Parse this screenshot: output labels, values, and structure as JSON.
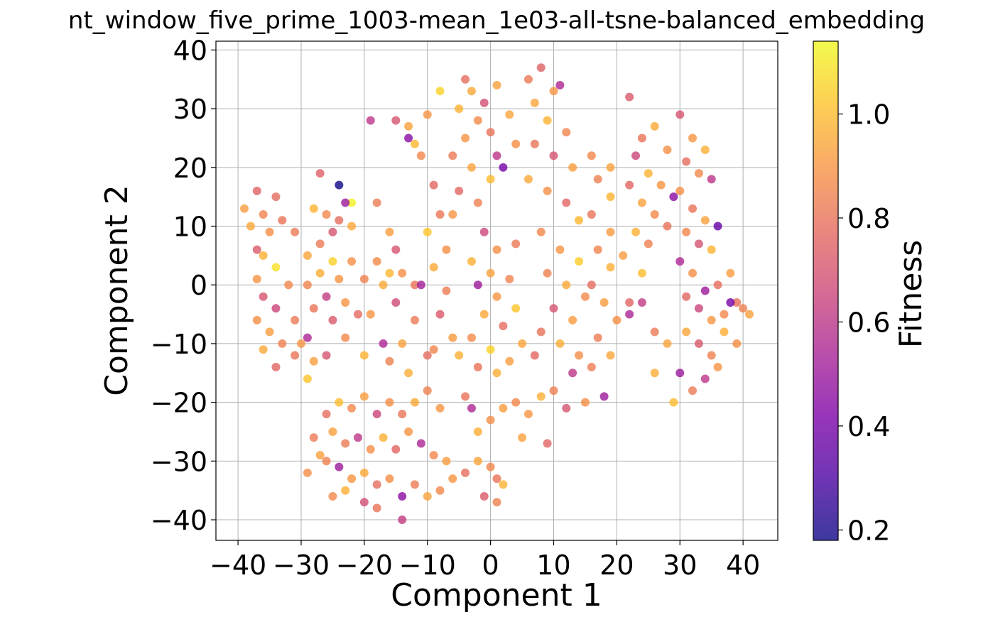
{
  "chart_data": {
    "type": "scatter",
    "title": "nt_window_five_prime_1003-mean_1e03-all-tsne-balanced_embedding",
    "xlabel": "Component 1",
    "ylabel": "Component 2",
    "xlim": [
      -43.5,
      45.5
    ],
    "ylim": [
      -43.5,
      41.5
    ],
    "xticks": [
      -40,
      -30,
      -20,
      -10,
      0,
      10,
      20,
      30,
      40
    ],
    "yticks": [
      -40,
      -30,
      -20,
      -10,
      0,
      10,
      20,
      30,
      40
    ],
    "xtick_labels": [
      "−40",
      "−30",
      "−20",
      "−10",
      "0",
      "10",
      "20",
      "30",
      "40"
    ],
    "ytick_labels": [
      "−40",
      "−30",
      "−20",
      "−10",
      "0",
      "10",
      "20",
      "30",
      "40"
    ],
    "grid": true,
    "colormap": "plasma",
    "colorbar": {
      "label": "Fitness",
      "range": [
        0.18,
        1.14
      ],
      "ticks": [
        0.2,
        0.4,
        0.6,
        0.8,
        1.0
      ],
      "tick_labels": [
        "0.2",
        "0.4",
        "0.6",
        "0.8",
        "1.0"
      ]
    },
    "point_alpha": 0.8,
    "points": [
      [
        -37,
        16,
        0.75
      ],
      [
        -34,
        15,
        0.78
      ],
      [
        -39,
        13,
        0.92
      ],
      [
        -36,
        12,
        0.85
      ],
      [
        -33,
        11,
        0.8
      ],
      [
        -38,
        10,
        0.95
      ],
      [
        -35,
        9,
        0.88
      ],
      [
        -31,
        9,
        0.82
      ],
      [
        -37,
        6,
        0.72
      ],
      [
        -36,
        5,
        0.97
      ],
      [
        -34,
        3,
        1.08
      ],
      [
        -37,
        1,
        0.9
      ],
      [
        -32,
        0,
        0.86
      ],
      [
        -36,
        -2,
        0.7
      ],
      [
        -34,
        -4,
        0.65
      ],
      [
        -37,
        -6,
        0.88
      ],
      [
        -35,
        -8,
        0.92
      ],
      [
        -33,
        -10,
        0.84
      ],
      [
        -36,
        -11,
        0.95
      ],
      [
        -31,
        -12,
        0.8
      ],
      [
        -34,
        -14,
        0.76
      ],
      [
        -30,
        -10,
        0.9
      ],
      [
        -29,
        -16,
        1.02
      ],
      [
        -29,
        -9,
        0.55
      ],
      [
        -31,
        -6,
        0.82
      ],
      [
        -28,
        13,
        0.98
      ],
      [
        -26,
        12,
        0.86
      ],
      [
        -24,
        11,
        0.78
      ],
      [
        -22,
        10,
        0.95
      ],
      [
        -27,
        19,
        0.74
      ],
      [
        -24,
        17,
        0.18
      ],
      [
        -22,
        14,
        1.12
      ],
      [
        -25,
        9,
        0.7
      ],
      [
        -27,
        7,
        0.82
      ],
      [
        -29,
        5,
        0.94
      ],
      [
        -25,
        4,
        1.05
      ],
      [
        -22,
        4,
        0.88
      ],
      [
        -27,
        2,
        0.96
      ],
      [
        -24,
        1,
        0.9
      ],
      [
        -29,
        0,
        0.85
      ],
      [
        -26,
        -2,
        0.62
      ],
      [
        -28,
        -4,
        0.8
      ],
      [
        -25,
        -6,
        0.72
      ],
      [
        -23,
        -3,
        0.9
      ],
      [
        -21,
        -5,
        0.77
      ],
      [
        -26,
        -12,
        0.7
      ],
      [
        -23,
        -9,
        0.86
      ],
      [
        -20,
        -12,
        0.98
      ],
      [
        -28,
        -13,
        0.92
      ],
      [
        -23,
        14,
        0.5
      ],
      [
        -18,
        14,
        0.83
      ],
      [
        -16,
        9,
        0.92
      ],
      [
        -15,
        6,
        0.7
      ],
      [
        -18,
        4,
        0.87
      ],
      [
        -16,
        2,
        0.99
      ],
      [
        -20,
        1,
        0.84
      ],
      [
        -17,
        0,
        0.95
      ],
      [
        -14,
        2,
        0.88
      ],
      [
        -12,
        0,
        0.8
      ],
      [
        -15,
        -3,
        0.67
      ],
      [
        -19,
        -5,
        0.9
      ],
      [
        -12,
        -6,
        0.82
      ],
      [
        -17,
        -10,
        0.55
      ],
      [
        -14,
        -10,
        0.93
      ],
      [
        -10,
        -12,
        0.78
      ],
      [
        -13,
        -15,
        0.96
      ],
      [
        -16,
        -13,
        0.84
      ],
      [
        -19,
        28,
        0.6
      ],
      [
        -15,
        28,
        0.7
      ],
      [
        -13,
        27,
        0.93
      ],
      [
        -12,
        24,
        0.99
      ],
      [
        -10,
        29,
        0.9
      ],
      [
        -8,
        33,
        1.05
      ],
      [
        -13,
        25,
        0.45
      ],
      [
        -11,
        22,
        0.86
      ],
      [
        -9,
        17,
        0.76
      ],
      [
        -8,
        12,
        0.81
      ],
      [
        -10,
        9,
        1.02
      ],
      [
        -7,
        6,
        0.88
      ],
      [
        -9,
        3,
        0.95
      ],
      [
        -11,
        0,
        0.52
      ],
      [
        -7,
        -1,
        0.83
      ],
      [
        -8,
        -5,
        0.72
      ],
      [
        -6,
        -9,
        0.91
      ],
      [
        -9,
        -11,
        0.85
      ],
      [
        -5,
        -12,
        0.97
      ],
      [
        -4,
        35,
        0.78
      ],
      [
        -3,
        33,
        0.95
      ],
      [
        -1,
        31,
        0.68
      ],
      [
        1,
        34,
        0.93
      ],
      [
        -5,
        30,
        0.98
      ],
      [
        -2,
        28,
        0.87
      ],
      [
        0,
        26,
        0.8
      ],
      [
        -4,
        25,
        0.9
      ],
      [
        -6,
        22,
        0.82
      ],
      [
        -3,
        20,
        0.94
      ],
      [
        0,
        18,
        1.0
      ],
      [
        -5,
        16,
        0.76
      ],
      [
        -2,
        14,
        0.84
      ],
      [
        -6,
        12,
        0.9
      ],
      [
        1,
        22,
        0.6
      ],
      [
        2,
        20,
        0.4
      ],
      [
        4,
        24,
        0.88
      ],
      [
        3,
        29,
        0.94
      ],
      [
        -1,
        9,
        0.66
      ],
      [
        1,
        6,
        0.88
      ],
      [
        4,
        7,
        0.82
      ],
      [
        -3,
        4,
        0.97
      ],
      [
        0,
        2,
        0.93
      ],
      [
        3,
        1,
        0.85
      ],
      [
        -2,
        0,
        0.5
      ],
      [
        1,
        -2,
        0.9
      ],
      [
        4,
        -4,
        1.02
      ],
      [
        -1,
        -5,
        0.95
      ],
      [
        2,
        -7,
        0.78
      ],
      [
        -3,
        -9,
        0.87
      ],
      [
        0,
        -11,
        1.05
      ],
      [
        3,
        -13,
        0.92
      ],
      [
        -2,
        -14,
        0.8
      ],
      [
        1,
        -15,
        0.96
      ],
      [
        6,
        35,
        0.82
      ],
      [
        8,
        37,
        0.75
      ],
      [
        10,
        33,
        0.9
      ],
      [
        7,
        31,
        0.94
      ],
      [
        11,
        34,
        0.55
      ],
      [
        9,
        28,
        0.98
      ],
      [
        12,
        26,
        0.85
      ],
      [
        7,
        24,
        0.8
      ],
      [
        10,
        22,
        0.7
      ],
      [
        13,
        20,
        0.92
      ],
      [
        6,
        18,
        0.95
      ],
      [
        9,
        16,
        0.88
      ],
      [
        12,
        14,
        0.76
      ],
      [
        14,
        11,
        0.99
      ],
      [
        8,
        9,
        0.86
      ],
      [
        11,
        6,
        0.9
      ],
      [
        14,
        4,
        1.04
      ],
      [
        9,
        2,
        0.84
      ],
      [
        12,
        0,
        0.95
      ],
      [
        15,
        -2,
        0.87
      ],
      [
        10,
        -4,
        0.7
      ],
      [
        13,
        -6,
        0.92
      ],
      [
        8,
        -8,
        0.8
      ],
      [
        11,
        -10,
        0.96
      ],
      [
        14,
        -12,
        0.88
      ],
      [
        5,
        -10,
        0.94
      ],
      [
        7,
        -12,
        0.76
      ],
      [
        16,
        -14,
        0.83
      ],
      [
        13,
        -15,
        0.6
      ],
      [
        17,
        18,
        0.84
      ],
      [
        19,
        20,
        0.93
      ],
      [
        16,
        22,
        0.86
      ],
      [
        19,
        15,
        0.98
      ],
      [
        16,
        12,
        0.8
      ],
      [
        19,
        9,
        0.91
      ],
      [
        17,
        6,
        0.85
      ],
      [
        19,
        3,
        0.96
      ],
      [
        16,
        0,
        0.78
      ],
      [
        18,
        -3,
        0.92
      ],
      [
        20,
        -6,
        0.88
      ],
      [
        17,
        -9,
        0.83
      ],
      [
        19,
        -12,
        0.94
      ],
      [
        22,
        32,
        0.72
      ],
      [
        24,
        25,
        0.8
      ],
      [
        26,
        27,
        0.95
      ],
      [
        28,
        23,
        0.88
      ],
      [
        23,
        22,
        0.65
      ],
      [
        25,
        19,
        0.98
      ],
      [
        27,
        17,
        0.9
      ],
      [
        29,
        15,
        0.45
      ],
      [
        22,
        17,
        0.76
      ],
      [
        24,
        14,
        0.93
      ],
      [
        26,
        12,
        0.86
      ],
      [
        28,
        10,
        0.8
      ],
      [
        23,
        9,
        0.97
      ],
      [
        25,
        7,
        0.84
      ],
      [
        21,
        5,
        0.91
      ],
      [
        24,
        2,
        1.0
      ],
      [
        22,
        -3,
        0.76
      ],
      [
        22,
        -5,
        0.55
      ],
      [
        24,
        -3,
        0.62
      ],
      [
        26,
        -8,
        0.82
      ],
      [
        28,
        -10,
        0.94
      ],
      [
        26,
        -15,
        0.96
      ],
      [
        30,
        29,
        0.7
      ],
      [
        32,
        25,
        0.9
      ],
      [
        34,
        23,
        0.97
      ],
      [
        31,
        21,
        0.78
      ],
      [
        33,
        19,
        0.86
      ],
      [
        35,
        18,
        0.6
      ],
      [
        30,
        16,
        0.88
      ],
      [
        32,
        13,
        0.8
      ],
      [
        34,
        11,
        0.93
      ],
      [
        36,
        10,
        0.35
      ],
      [
        31,
        9,
        0.85
      ],
      [
        33,
        7,
        0.7
      ],
      [
        35,
        6,
        0.98
      ],
      [
        30,
        4,
        0.55
      ],
      [
        32,
        2,
        0.88
      ],
      [
        34,
        -1,
        0.5
      ],
      [
        36,
        0,
        0.79
      ],
      [
        38,
        2,
        0.92
      ],
      [
        31,
        -2,
        0.76
      ],
      [
        33,
        -4,
        0.65
      ],
      [
        35,
        -6,
        0.9
      ],
      [
        37,
        -5,
        0.86
      ],
      [
        39,
        -3,
        0.8
      ],
      [
        31,
        -8,
        0.94
      ],
      [
        33,
        -10,
        0.72
      ],
      [
        35,
        -12,
        0.84
      ],
      [
        37,
        -8,
        0.96
      ],
      [
        39,
        -10,
        0.88
      ],
      [
        30,
        -15,
        0.5
      ],
      [
        32,
        -18,
        0.82
      ],
      [
        34,
        -16,
        0.6
      ],
      [
        36,
        -14,
        0.9
      ],
      [
        29,
        -20,
        1.0
      ],
      [
        38,
        -3,
        0.4
      ],
      [
        40,
        -4,
        0.84
      ],
      [
        41,
        -5,
        0.93
      ],
      [
        -26,
        -22,
        0.78
      ],
      [
        -24,
        -20,
        1.0
      ],
      [
        -22,
        -21,
        0.86
      ],
      [
        -20,
        -19,
        0.92
      ],
      [
        -18,
        -22,
        0.65
      ],
      [
        -16,
        -20,
        0.88
      ],
      [
        -14,
        -22,
        0.8
      ],
      [
        -12,
        -20,
        0.95
      ],
      [
        -10,
        -18,
        0.84
      ],
      [
        -8,
        -21,
        0.9
      ],
      [
        -25,
        -25,
        0.93
      ],
      [
        -23,
        -27,
        0.82
      ],
      [
        -21,
        -26,
        0.6
      ],
      [
        -19,
        -28,
        0.88
      ],
      [
        -17,
        -26,
        0.97
      ],
      [
        -15,
        -28,
        0.76
      ],
      [
        -13,
        -25,
        0.9
      ],
      [
        -11,
        -27,
        0.55
      ],
      [
        -9,
        -29,
        0.86
      ],
      [
        -7,
        -30,
        0.92
      ],
      [
        -26,
        -30,
        0.84
      ],
      [
        -24,
        -31,
        0.5
      ],
      [
        -22,
        -33,
        0.9
      ],
      [
        -20,
        -32,
        0.95
      ],
      [
        -18,
        -34,
        0.78
      ],
      [
        -16,
        -33,
        0.88
      ],
      [
        -14,
        -36,
        0.45
      ],
      [
        -12,
        -34,
        0.82
      ],
      [
        -10,
        -36,
        0.93
      ],
      [
        -8,
        -35,
        0.86
      ],
      [
        -20,
        -37,
        0.68
      ],
      [
        -18,
        -38,
        0.8
      ],
      [
        -14,
        -40,
        0.62
      ],
      [
        -6,
        -33,
        0.9
      ],
      [
        -4,
        -32,
        0.78
      ],
      [
        -2,
        -30,
        0.94
      ],
      [
        0,
        -31,
        0.86
      ],
      [
        1,
        -33,
        0.8
      ],
      [
        2,
        -34,
        0.98
      ],
      [
        -1,
        -36,
        0.72
      ],
      [
        1,
        -37,
        0.84
      ],
      [
        -2,
        -25,
        0.96
      ],
      [
        0,
        -23,
        0.88
      ],
      [
        -3,
        -21,
        0.55
      ],
      [
        -4,
        -19,
        0.8
      ],
      [
        2,
        -21,
        0.92
      ],
      [
        4,
        -20,
        0.86
      ],
      [
        6,
        -22,
        0.9
      ],
      [
        8,
        -19,
        0.97
      ],
      [
        10,
        -18,
        0.84
      ],
      [
        12,
        -21,
        0.7
      ],
      [
        15,
        -20,
        0.88
      ],
      [
        18,
        -19,
        0.5
      ],
      [
        5,
        -26,
        0.93
      ],
      [
        9,
        -27,
        0.76
      ],
      [
        -28,
        -26,
        0.82
      ],
      [
        -27,
        -29,
        0.93
      ],
      [
        -29,
        -32,
        0.88
      ],
      [
        -25,
        -36,
        0.86
      ],
      [
        -23,
        -35,
        0.97
      ]
    ]
  }
}
